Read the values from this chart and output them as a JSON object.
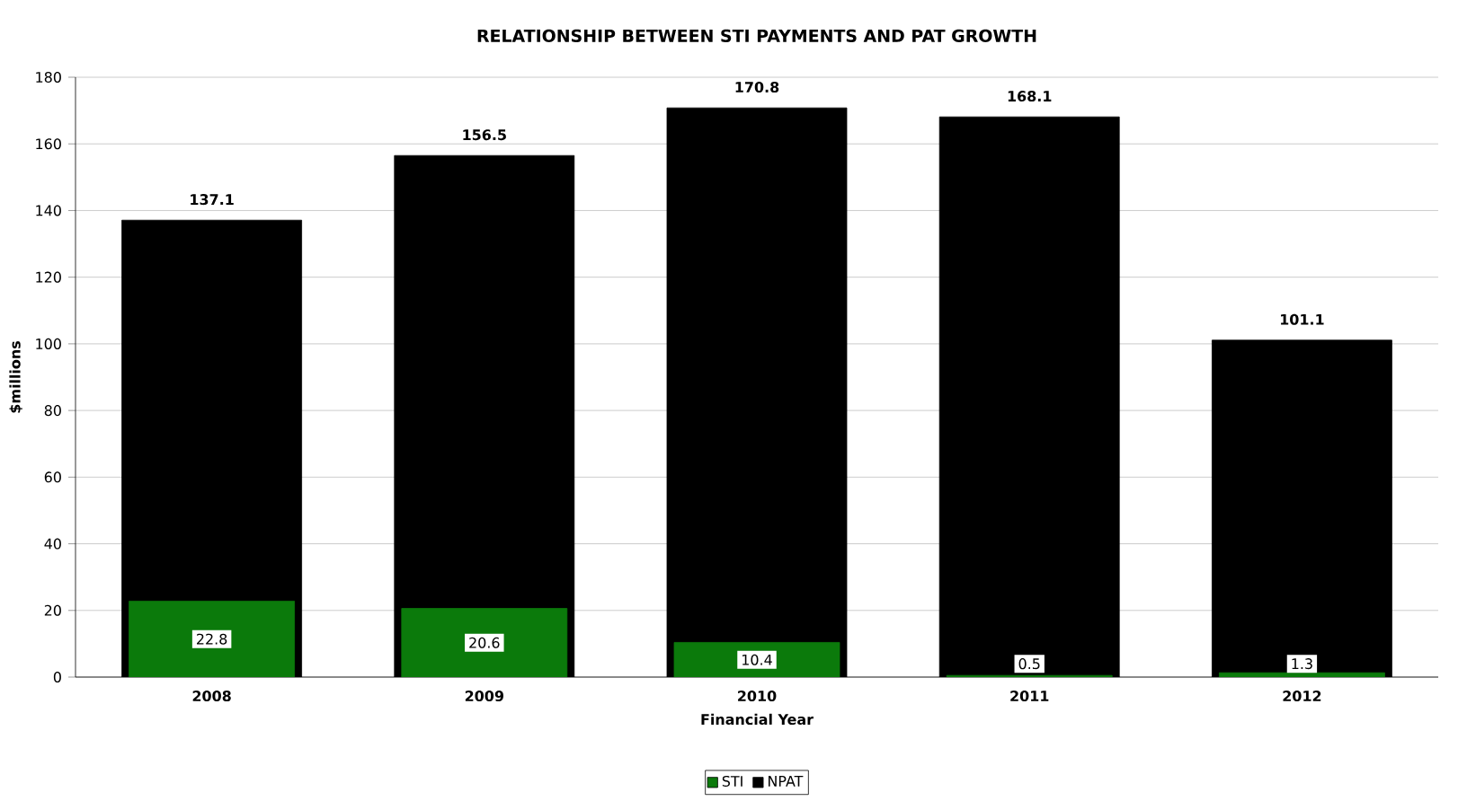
{
  "chart_data": {
    "type": "bar",
    "title": "RELATIONSHIP BETWEEN STI PAYMENTS AND PAT GROWTH",
    "xlabel": "Financial Year",
    "ylabel": "$millions",
    "categories": [
      "2008",
      "2009",
      "2010",
      "2011",
      "2012"
    ],
    "series": [
      {
        "name": "STI",
        "color": "#0b7a0b",
        "values": [
          22.8,
          20.6,
          10.4,
          0.5,
          1.3
        ]
      },
      {
        "name": "NPAT",
        "color": "#000000",
        "values": [
          137.1,
          156.5,
          170.8,
          168.1,
          101.1
        ]
      }
    ],
    "ylim": [
      0,
      180
    ],
    "yticks": [
      0,
      20,
      40,
      60,
      80,
      100,
      120,
      140,
      160,
      180
    ],
    "grid": "y",
    "legend": "bottom",
    "data_labels": true
  }
}
